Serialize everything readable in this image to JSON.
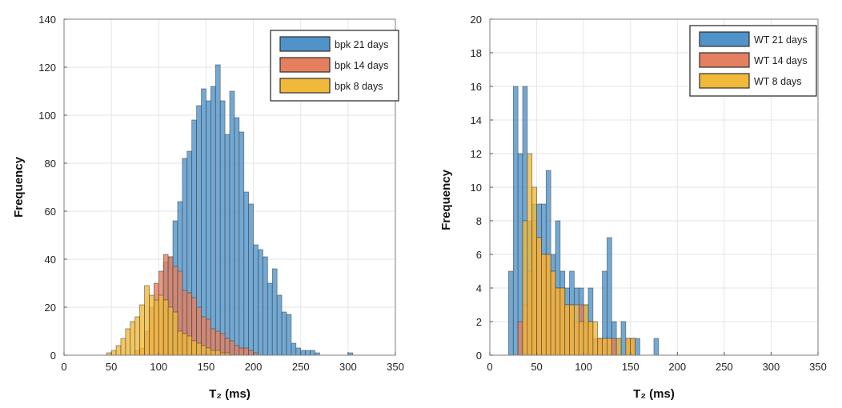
{
  "chart_data": [
    {
      "type": "histogram",
      "xlabel": "T₂ (ms)",
      "ylabel": "Frequency",
      "xlim": [
        0,
        350
      ],
      "ylim": [
        0,
        140
      ],
      "xticks": [
        0,
        50,
        100,
        150,
        200,
        250,
        300,
        350
      ],
      "yticks": [
        0,
        20,
        40,
        60,
        80,
        100,
        120,
        140
      ],
      "bin_width": 5,
      "legend_position": "top-right",
      "series": [
        {
          "name": "bpk 21 days",
          "color": "#4f93c9",
          "bins": [
            [
              105,
              39
            ],
            [
              110,
              41
            ],
            [
              115,
              56
            ],
            [
              120,
              64
            ],
            [
              125,
              82
            ],
            [
              130,
              85
            ],
            [
              135,
              98
            ],
            [
              140,
              104
            ],
            [
              145,
              111
            ],
            [
              150,
              106
            ],
            [
              155,
              112
            ],
            [
              160,
              121
            ],
            [
              165,
              106
            ],
            [
              170,
              92
            ],
            [
              175,
              110
            ],
            [
              180,
              99
            ],
            [
              185,
              93
            ],
            [
              190,
              68
            ],
            [
              195,
              63
            ],
            [
              200,
              46
            ],
            [
              205,
              44
            ],
            [
              210,
              41
            ],
            [
              215,
              30
            ],
            [
              220,
              36
            ],
            [
              225,
              25
            ],
            [
              230,
              18
            ],
            [
              235,
              17
            ],
            [
              240,
              5
            ],
            [
              245,
              3
            ],
            [
              250,
              2
            ],
            [
              255,
              2
            ],
            [
              260,
              2
            ],
            [
              265,
              1
            ],
            [
              300,
              1
            ]
          ]
        },
        {
          "name": "bpk 14 days",
          "color": "#e4805f",
          "bins": [
            [
              75,
              2
            ],
            [
              80,
              3
            ],
            [
              85,
              10
            ],
            [
              90,
              20
            ],
            [
              95,
              30
            ],
            [
              100,
              35
            ],
            [
              105,
              42
            ],
            [
              110,
              41
            ],
            [
              115,
              37
            ],
            [
              120,
              35
            ],
            [
              125,
              27
            ],
            [
              130,
              26
            ],
            [
              135,
              24
            ],
            [
              140,
              20
            ],
            [
              145,
              16
            ],
            [
              150,
              15
            ],
            [
              155,
              11
            ],
            [
              160,
              10
            ],
            [
              165,
              9
            ],
            [
              170,
              7
            ],
            [
              175,
              6
            ],
            [
              180,
              4
            ],
            [
              185,
              3
            ],
            [
              190,
              3
            ],
            [
              195,
              2
            ],
            [
              200,
              1
            ]
          ]
        },
        {
          "name": "bpk 8 days",
          "color": "#f0b93a",
          "bins": [
            [
              45,
              1
            ],
            [
              50,
              2
            ],
            [
              55,
              4
            ],
            [
              60,
              7
            ],
            [
              65,
              11
            ],
            [
              70,
              14
            ],
            [
              75,
              16
            ],
            [
              80,
              21
            ],
            [
              85,
              29
            ],
            [
              90,
              25
            ],
            [
              95,
              23
            ],
            [
              100,
              25
            ],
            [
              105,
              23
            ],
            [
              110,
              20
            ],
            [
              115,
              18
            ],
            [
              120,
              10
            ],
            [
              125,
              9
            ],
            [
              130,
              8
            ],
            [
              135,
              6
            ],
            [
              140,
              5
            ],
            [
              145,
              4
            ],
            [
              150,
              3
            ],
            [
              155,
              2
            ],
            [
              160,
              2
            ],
            [
              165,
              1
            ],
            [
              170,
              1
            ]
          ]
        }
      ]
    },
    {
      "type": "histogram",
      "xlabel": "T₂ (ms)",
      "ylabel": "Frequency",
      "xlim": [
        0,
        350
      ],
      "ylim": [
        0,
        20
      ],
      "xticks": [
        0,
        50,
        100,
        150,
        200,
        250,
        300,
        350
      ],
      "yticks": [
        0,
        2,
        4,
        6,
        8,
        10,
        12,
        14,
        16,
        18,
        20
      ],
      "bin_width": 5,
      "legend_position": "top-right",
      "series": [
        {
          "name": "WT 21 days",
          "color": "#4f93c9",
          "bins": [
            [
              20,
              5
            ],
            [
              25,
              16
            ],
            [
              30,
              12
            ],
            [
              35,
              16
            ],
            [
              40,
              8
            ],
            [
              45,
              9
            ],
            [
              50,
              9
            ],
            [
              55,
              9
            ],
            [
              60,
              11
            ],
            [
              65,
              6
            ],
            [
              70,
              8
            ],
            [
              75,
              5
            ],
            [
              80,
              4
            ],
            [
              85,
              5
            ],
            [
              90,
              4
            ],
            [
              95,
              4
            ],
            [
              100,
              3
            ],
            [
              105,
              4
            ],
            [
              110,
              1
            ],
            [
              115,
              1
            ],
            [
              120,
              5
            ],
            [
              125,
              7
            ],
            [
              130,
              2
            ],
            [
              135,
              1
            ],
            [
              140,
              2
            ],
            [
              145,
              1
            ],
            [
              150,
              1
            ],
            [
              155,
              1
            ],
            [
              175,
              1
            ]
          ]
        },
        {
          "name": "WT 14 days",
          "color": "#e4805f",
          "bins": [
            [
              30,
              2
            ],
            [
              35,
              3
            ],
            [
              40,
              5
            ],
            [
              45,
              8
            ],
            [
              50,
              7
            ],
            [
              55,
              6
            ],
            [
              60,
              6
            ],
            [
              65,
              5
            ],
            [
              70,
              4
            ],
            [
              75,
              4
            ],
            [
              80,
              3
            ],
            [
              85,
              3
            ],
            [
              90,
              2
            ],
            [
              95,
              3
            ],
            [
              100,
              2
            ],
            [
              105,
              2
            ],
            [
              110,
              1
            ],
            [
              115,
              1
            ],
            [
              120,
              1
            ],
            [
              125,
              1
            ],
            [
              130,
              1
            ],
            [
              145,
              1
            ],
            [
              150,
              1
            ]
          ]
        },
        {
          "name": "WT 8 days",
          "color": "#f0b93a",
          "bins": [
            [
              35,
              8
            ],
            [
              40,
              12
            ],
            [
              45,
              10
            ],
            [
              50,
              7
            ],
            [
              55,
              6
            ],
            [
              60,
              6
            ],
            [
              65,
              5
            ],
            [
              70,
              4
            ],
            [
              75,
              4
            ],
            [
              80,
              3
            ],
            [
              85,
              3
            ],
            [
              90,
              3
            ],
            [
              95,
              2
            ],
            [
              100,
              3
            ],
            [
              105,
              2
            ],
            [
              110,
              2
            ],
            [
              115,
              1
            ],
            [
              120,
              1
            ],
            [
              125,
              1
            ],
            [
              135,
              1
            ],
            [
              145,
              1
            ],
            [
              150,
              1
            ]
          ]
        }
      ]
    }
  ]
}
